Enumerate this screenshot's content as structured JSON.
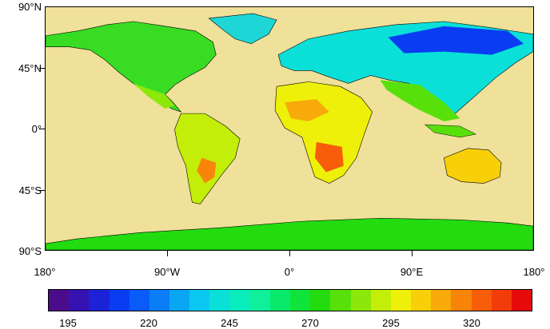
{
  "map": {
    "lat_labels": [
      "90°N",
      "45°N",
      "0°",
      "45°S",
      "90°S"
    ],
    "lon_labels": [
      "180°",
      "90°W",
      "0°",
      "90°E",
      "180°"
    ],
    "ocean_color": "#efe09a"
  },
  "colorbar": {
    "labels": [
      "195",
      "220",
      "245",
      "270",
      "295",
      "320"
    ],
    "colors": [
      "#4b0c8c",
      "#3612b2",
      "#1c22d8",
      "#0a3cf2",
      "#0a5cf8",
      "#0a7ef6",
      "#0aa6f4",
      "#0ac8f0",
      "#0ae0d8",
      "#0aecbc",
      "#10f09c",
      "#0aea6a",
      "#10e43a",
      "#22dc10",
      "#58e00a",
      "#8ce80a",
      "#c2ee0a",
      "#eef00a",
      "#f8d00a",
      "#f8aa0a",
      "#f8840a",
      "#f85e0a",
      "#f23c0a",
      "#e60a0a"
    ]
  }
}
